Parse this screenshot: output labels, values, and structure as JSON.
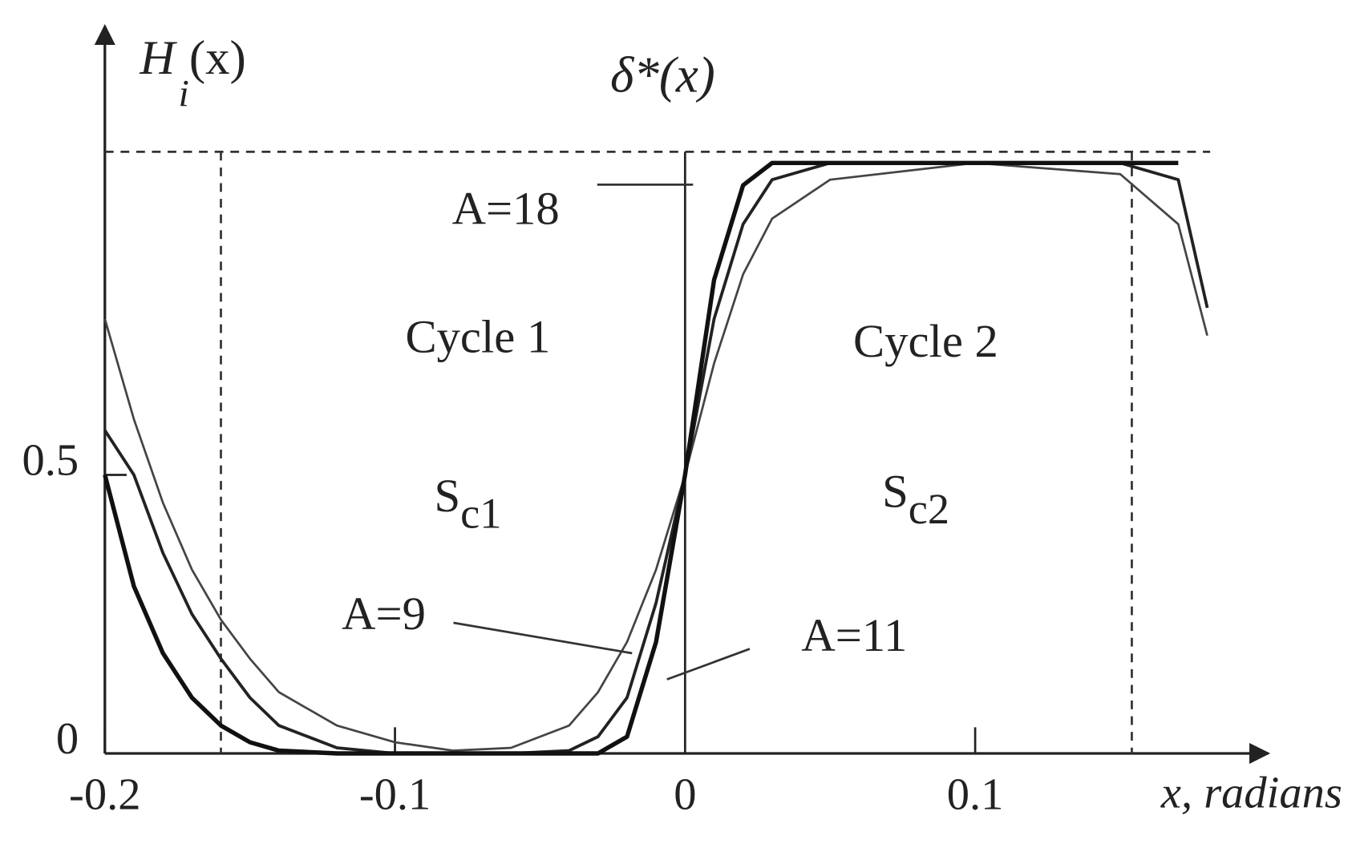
{
  "chart_data": {
    "type": "line",
    "y_label": {
      "main": "H",
      "sub": "i",
      "rest": "(x)"
    },
    "curve_label": "δ*(x)",
    "x_label": "x, radians",
    "x": [
      -0.2,
      -0.19,
      -0.18,
      -0.17,
      -0.16,
      -0.15,
      -0.14,
      -0.12,
      -0.1,
      -0.08,
      -0.06,
      -0.04,
      -0.03,
      -0.02,
      -0.01,
      0,
      0.01,
      0.02,
      0.03,
      0.05,
      0.1,
      0.15,
      0.17,
      0.18
    ],
    "series": [
      {
        "name": "A=9",
        "color": "#444444",
        "width": 2.5,
        "values": [
          0.78,
          0.6,
          0.45,
          0.33,
          0.24,
          0.17,
          0.11,
          0.05,
          0.02,
          0.005,
          0.01,
          0.05,
          0.11,
          0.2,
          0.33,
          0.5,
          0.7,
          0.86,
          0.96,
          1.03,
          1.06,
          1.04,
          0.95,
          0.75
        ]
      },
      {
        "name": "A=11",
        "color": "#222222",
        "width": 3.5,
        "values": [
          0.58,
          0.5,
          0.36,
          0.25,
          0.17,
          0.1,
          0.05,
          0.01,
          0,
          0,
          0,
          0.005,
          0.03,
          0.1,
          0.27,
          0.5,
          0.78,
          0.95,
          1.03,
          1.06,
          1.06,
          1.06,
          1.03,
          0.8
        ]
      },
      {
        "name": "A=18",
        "color": "#111111",
        "width": 5,
        "values": [
          0.5,
          0.3,
          0.18,
          0.1,
          0.05,
          0.02,
          0.005,
          0,
          0,
          0,
          0,
          0,
          0,
          0.03,
          0.2,
          0.5,
          0.85,
          1.02,
          1.06,
          1.06,
          1.06,
          1.06,
          1.06,
          null
        ]
      }
    ],
    "xlim": [
      -0.2,
      0.195
    ],
    "ylim": [
      0,
      1.29
    ],
    "xticks": [
      -0.2,
      -0.1,
      0,
      0.1
    ],
    "yticks": [
      0,
      0.5
    ],
    "reference_lines": {
      "x": [
        -0.16,
        0.154
      ],
      "y": 1.08
    },
    "regions": [
      {
        "label": "Cycle 1",
        "symbol": "S",
        "sub": "c1"
      },
      {
        "label": "Cycle 2",
        "symbol": "S",
        "sub": "c2"
      }
    ]
  }
}
